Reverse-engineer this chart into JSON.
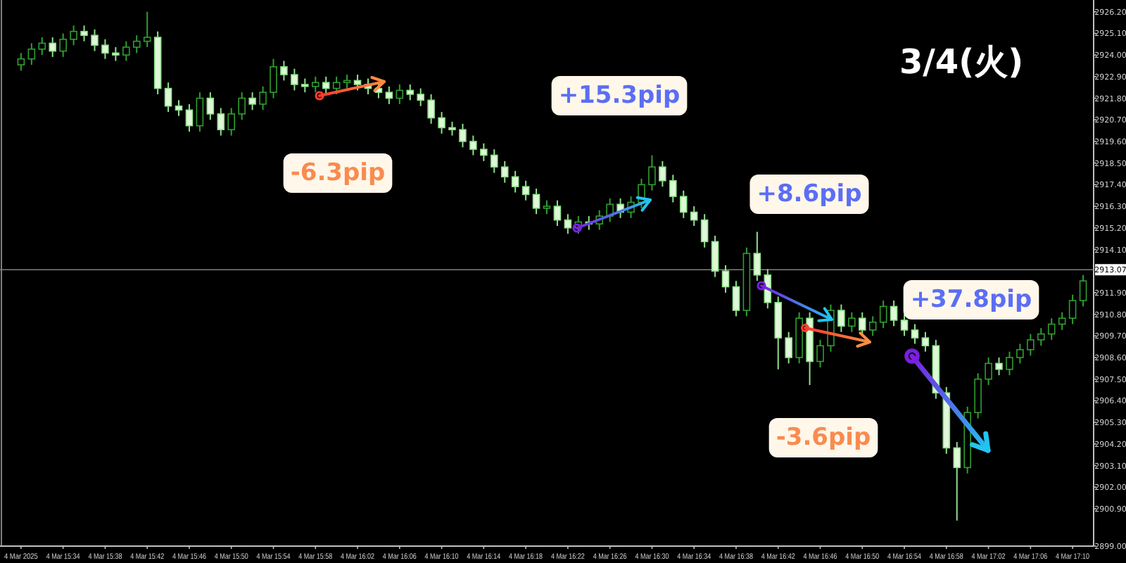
{
  "chart_data": {
    "type": "candlestick",
    "title": "3/4(火)",
    "annotations": [
      "-6.3pip",
      "+15.3pip",
      "+8.6pip",
      "+37.8pip",
      "-3.6pip"
    ],
    "x": [
      "2025-03-04T15:30",
      "2025-03-04T15:31",
      "2025-03-04T15:32",
      "2025-03-04T15:33",
      "2025-03-04T15:34",
      "2025-03-04T15:35",
      "2025-03-04T15:36",
      "2025-03-04T15:37",
      "2025-03-04T15:38",
      "2025-03-04T15:39",
      "2025-03-04T15:40",
      "2025-03-04T15:41",
      "2025-03-04T15:42",
      "2025-03-04T15:43",
      "2025-03-04T15:44",
      "2025-03-04T15:45",
      "2025-03-04T15:46",
      "2025-03-04T15:47",
      "2025-03-04T15:48",
      "2025-03-04T15:49",
      "2025-03-04T15:50",
      "2025-03-04T15:51",
      "2025-03-04T15:52",
      "2025-03-04T15:53",
      "2025-03-04T15:54",
      "2025-03-04T15:55",
      "2025-03-04T15:56",
      "2025-03-04T15:57",
      "2025-03-04T15:58",
      "2025-03-04T15:59",
      "2025-03-04T16:00",
      "2025-03-04T16:01",
      "2025-03-04T16:02",
      "2025-03-04T16:03",
      "2025-03-04T16:04",
      "2025-03-04T16:05",
      "2025-03-04T16:06",
      "2025-03-04T16:07",
      "2025-03-04T16:08",
      "2025-03-04T16:09",
      "2025-03-04T16:10",
      "2025-03-04T16:11",
      "2025-03-04T16:12",
      "2025-03-04T16:13",
      "2025-03-04T16:14",
      "2025-03-04T16:15",
      "2025-03-04T16:16",
      "2025-03-04T16:17",
      "2025-03-04T16:18",
      "2025-03-04T16:19",
      "2025-03-04T16:20",
      "2025-03-04T16:21",
      "2025-03-04T16:22",
      "2025-03-04T16:23",
      "2025-03-04T16:24",
      "2025-03-04T16:25",
      "2025-03-04T16:26",
      "2025-03-04T16:27",
      "2025-03-04T16:28",
      "2025-03-04T16:29",
      "2025-03-04T16:30",
      "2025-03-04T16:31",
      "2025-03-04T16:32",
      "2025-03-04T16:33",
      "2025-03-04T16:34",
      "2025-03-04T16:35",
      "2025-03-04T16:36",
      "2025-03-04T16:37",
      "2025-03-04T16:38",
      "2025-03-04T16:39",
      "2025-03-04T16:40",
      "2025-03-04T16:41",
      "2025-03-04T16:42",
      "2025-03-04T16:43",
      "2025-03-04T16:44",
      "2025-03-04T16:45",
      "2025-03-04T16:46",
      "2025-03-04T16:47",
      "2025-03-04T16:48",
      "2025-03-04T16:49",
      "2025-03-04T16:50",
      "2025-03-04T16:51",
      "2025-03-04T16:52",
      "2025-03-04T16:53",
      "2025-03-04T16:54",
      "2025-03-04T16:55",
      "2025-03-04T16:56",
      "2025-03-04T16:57",
      "2025-03-04T16:58",
      "2025-03-04T16:59",
      "2025-03-04T17:00",
      "2025-03-04T17:01",
      "2025-03-04T17:02",
      "2025-03-04T17:03",
      "2025-03-04T17:04",
      "2025-03-04T17:05",
      "2025-03-04T17:06",
      "2025-03-04T17:07",
      "2025-03-04T17:08",
      "2025-03-04T17:09",
      "2025-03-04T17:10",
      "2025-03-04T17:11"
    ],
    "ohlc": [
      [
        2923.5,
        2924.1,
        2923.2,
        2923.8
      ],
      [
        2923.8,
        2924.6,
        2923.5,
        2924.3
      ],
      [
        2924.3,
        2924.9,
        2924.0,
        2924.6
      ],
      [
        2924.6,
        2924.9,
        2923.9,
        2924.2
      ],
      [
        2924.2,
        2925.1,
        2923.9,
        2924.8
      ],
      [
        2924.8,
        2925.5,
        2924.5,
        2925.2
      ],
      [
        2925.2,
        2925.5,
        2924.7,
        2925.0
      ],
      [
        2925.0,
        2925.3,
        2924.2,
        2924.5
      ],
      [
        2924.5,
        2924.8,
        2923.8,
        2924.1
      ],
      [
        2924.1,
        2924.4,
        2923.7,
        2924.0
      ],
      [
        2924.0,
        2924.7,
        2923.7,
        2924.4
      ],
      [
        2924.4,
        2925.0,
        2924.1,
        2924.7
      ],
      [
        2924.7,
        2926.2,
        2924.4,
        2924.9
      ],
      [
        2924.9,
        2925.2,
        2922.0,
        2922.3
      ],
      [
        2922.3,
        2922.6,
        2921.1,
        2921.4
      ],
      [
        2921.4,
        2921.7,
        2920.9,
        2921.2
      ],
      [
        2921.2,
        2921.5,
        2920.1,
        2920.4
      ],
      [
        2920.4,
        2922.1,
        2920.1,
        2921.8
      ],
      [
        2921.8,
        2922.1,
        2920.7,
        2921.0
      ],
      [
        2921.0,
        2921.3,
        2919.9,
        2920.2
      ],
      [
        2920.2,
        2921.3,
        2919.9,
        2921.0
      ],
      [
        2921.0,
        2922.1,
        2920.7,
        2921.8
      ],
      [
        2921.8,
        2922.1,
        2921.2,
        2921.5
      ],
      [
        2921.5,
        2922.4,
        2921.2,
        2922.1
      ],
      [
        2922.1,
        2923.8,
        2921.8,
        2923.4
      ],
      [
        2923.4,
        2923.7,
        2922.7,
        2923.0
      ],
      [
        2923.0,
        2923.3,
        2922.2,
        2922.5
      ],
      [
        2922.5,
        2922.8,
        2922.1,
        2922.4
      ],
      [
        2922.4,
        2922.9,
        2922.1,
        2922.6
      ],
      [
        2922.6,
        2922.9,
        2922.0,
        2922.3
      ],
      [
        2922.3,
        2922.9,
        2922.0,
        2922.6
      ],
      [
        2922.6,
        2923.0,
        2922.3,
        2922.7
      ],
      [
        2922.7,
        2923.0,
        2922.2,
        2922.5
      ],
      [
        2922.5,
        2922.8,
        2922.0,
        2922.3
      ],
      [
        2922.3,
        2922.6,
        2921.8,
        2922.1
      ],
      [
        2922.1,
        2922.4,
        2921.5,
        2921.8
      ],
      [
        2921.8,
        2922.5,
        2921.5,
        2922.2
      ],
      [
        2922.2,
        2922.5,
        2921.7,
        2922.0
      ],
      [
        2922.0,
        2922.3,
        2921.4,
        2921.7
      ],
      [
        2921.7,
        2922.0,
        2920.5,
        2920.8
      ],
      [
        2920.8,
        2921.1,
        2920.0,
        2920.3
      ],
      [
        2920.3,
        2920.6,
        2919.9,
        2920.2
      ],
      [
        2920.2,
        2920.5,
        2919.3,
        2919.6
      ],
      [
        2919.6,
        2919.9,
        2918.9,
        2919.2
      ],
      [
        2919.2,
        2919.5,
        2918.6,
        2918.9
      ],
      [
        2918.9,
        2919.2,
        2918.0,
        2918.3
      ],
      [
        2918.3,
        2918.6,
        2917.5,
        2917.8
      ],
      [
        2917.8,
        2918.1,
        2917.0,
        2917.3
      ],
      [
        2917.3,
        2917.6,
        2916.6,
        2916.9
      ],
      [
        2916.9,
        2917.2,
        2915.9,
        2916.2
      ],
      [
        2916.2,
        2916.6,
        2915.9,
        2916.3
      ],
      [
        2916.3,
        2916.6,
        2915.3,
        2915.6
      ],
      [
        2915.6,
        2915.9,
        2914.9,
        2915.2
      ],
      [
        2915.2,
        2915.8,
        2914.9,
        2915.5
      ],
      [
        2915.5,
        2915.8,
        2915.1,
        2915.4
      ],
      [
        2915.4,
        2916.1,
        2915.1,
        2915.8
      ],
      [
        2915.8,
        2916.7,
        2915.5,
        2916.4
      ],
      [
        2916.4,
        2916.7,
        2915.7,
        2916.0
      ],
      [
        2916.0,
        2916.8,
        2915.7,
        2916.5
      ],
      [
        2916.5,
        2917.7,
        2916.2,
        2917.4
      ],
      [
        2917.4,
        2918.9,
        2917.1,
        2918.3
      ],
      [
        2918.3,
        2918.6,
        2917.3,
        2917.6
      ],
      [
        2917.6,
        2917.9,
        2916.5,
        2916.8
      ],
      [
        2916.8,
        2917.1,
        2915.7,
        2916.0
      ],
      [
        2916.0,
        2916.3,
        2915.3,
        2915.6
      ],
      [
        2915.6,
        2915.9,
        2914.2,
        2914.5
      ],
      [
        2914.5,
        2914.8,
        2912.7,
        2913.0
      ],
      [
        2913.0,
        2913.3,
        2911.9,
        2912.2
      ],
      [
        2912.2,
        2912.5,
        2910.7,
        2911.0
      ],
      [
        2911.0,
        2914.2,
        2910.7,
        2913.9
      ],
      [
        2913.9,
        2915.0,
        2912.5,
        2912.8
      ],
      [
        2912.8,
        2913.1,
        2911.1,
        2911.4
      ],
      [
        2911.4,
        2911.7,
        2908.0,
        2909.6
      ],
      [
        2909.6,
        2909.9,
        2908.3,
        2908.6
      ],
      [
        2908.6,
        2910.9,
        2908.3,
        2910.6
      ],
      [
        2910.6,
        2910.9,
        2907.2,
        2908.4
      ],
      [
        2908.4,
        2909.5,
        2908.1,
        2909.2
      ],
      [
        2909.2,
        2911.3,
        2908.9,
        2911.0
      ],
      [
        2911.0,
        2911.3,
        2909.9,
        2910.2
      ],
      [
        2910.2,
        2910.9,
        2909.9,
        2910.6
      ],
      [
        2910.6,
        2910.9,
        2909.7,
        2910.0
      ],
      [
        2910.0,
        2910.7,
        2909.7,
        2910.4
      ],
      [
        2910.4,
        2911.5,
        2910.1,
        2911.2
      ],
      [
        2911.2,
        2911.5,
        2910.2,
        2910.5
      ],
      [
        2910.5,
        2910.8,
        2909.7,
        2910.0
      ],
      [
        2910.0,
        2910.3,
        2909.3,
        2909.6
      ],
      [
        2909.6,
        2909.9,
        2908.9,
        2909.2
      ],
      [
        2909.2,
        2909.5,
        2906.5,
        2906.8
      ],
      [
        2906.8,
        2907.1,
        2903.7,
        2904.0
      ],
      [
        2904.0,
        2904.3,
        2900.3,
        2903.0
      ],
      [
        2903.0,
        2906.1,
        2902.7,
        2905.8
      ],
      [
        2905.8,
        2907.8,
        2905.5,
        2907.5
      ],
      [
        2907.5,
        2908.6,
        2907.2,
        2908.3
      ],
      [
        2908.3,
        2908.6,
        2907.7,
        2908.0
      ],
      [
        2908.0,
        2908.9,
        2907.7,
        2908.6
      ],
      [
        2908.6,
        2909.3,
        2908.3,
        2909.0
      ],
      [
        2909.0,
        2909.8,
        2908.7,
        2909.5
      ],
      [
        2909.5,
        2910.1,
        2909.2,
        2909.8
      ],
      [
        2909.8,
        2910.6,
        2909.5,
        2910.3
      ],
      [
        2910.3,
        2910.9,
        2910.0,
        2910.6
      ],
      [
        2910.6,
        2911.8,
        2910.3,
        2911.5
      ],
      [
        2911.5,
        2912.8,
        2911.2,
        2912.5
      ]
    ],
    "xlim": [
      "2025-03-04T15:28",
      "2025-03-04T17:12"
    ],
    "xticks": [
      {
        "value": "2025-03-04T15:30",
        "label": "4 Mar 2025"
      },
      {
        "value": "2025-03-04T15:34",
        "label": "4 Mar 15:34"
      },
      {
        "value": "2025-03-04T15:38",
        "label": "4 Mar 15:38"
      },
      {
        "value": "2025-03-04T15:42",
        "label": "4 Mar 15:42"
      },
      {
        "value": "2025-03-04T15:46",
        "label": "4 Mar 15:46"
      },
      {
        "value": "2025-03-04T15:50",
        "label": "4 Mar 15:50"
      },
      {
        "value": "2025-03-04T15:54",
        "label": "4 Mar 15:54"
      },
      {
        "value": "2025-03-04T15:58",
        "label": "4 Mar 15:58"
      },
      {
        "value": "2025-03-04T16:02",
        "label": "4 Mar 16:02"
      },
      {
        "value": "2025-03-04T16:06",
        "label": "4 Mar 16:06"
      },
      {
        "value": "2025-03-04T16:10",
        "label": "4 Mar 16:10"
      },
      {
        "value": "2025-03-04T16:14",
        "label": "4 Mar 16:14"
      },
      {
        "value": "2025-03-04T16:18",
        "label": "4 Mar 16:18"
      },
      {
        "value": "2025-03-04T16:22",
        "label": "4 Mar 16:22"
      },
      {
        "value": "2025-03-04T16:26",
        "label": "4 Mar 16:26"
      },
      {
        "value": "2025-03-04T16:30",
        "label": "4 Mar 16:30"
      },
      {
        "value": "2025-03-04T16:34",
        "label": "4 Mar 16:34"
      },
      {
        "value": "2025-03-04T16:38",
        "label": "4 Mar 16:38"
      },
      {
        "value": "2025-03-04T16:42",
        "label": "4 Mar 16:42"
      },
      {
        "value": "2025-03-04T16:46",
        "label": "4 Mar 16:46"
      },
      {
        "value": "2025-03-04T16:50",
        "label": "4 Mar 16:50"
      },
      {
        "value": "2025-03-04T16:54",
        "label": "4 Mar 16:54"
      },
      {
        "value": "2025-03-04T16:58",
        "label": "4 Mar 16:58"
      },
      {
        "value": "2025-03-04T17:02",
        "label": "4 Mar 17:02"
      },
      {
        "value": "2025-03-04T17:06",
        "label": "4 Mar 17:06"
      },
      {
        "value": "2025-03-04T17:10",
        "label": "4 Mar 17:10"
      }
    ],
    "ylim": [
      2899.0,
      2926.8
    ],
    "yticks": [
      {
        "value": 2926.2,
        "label": "2926.20"
      },
      {
        "value": 2925.1,
        "label": "2925.10"
      },
      {
        "value": 2924.0,
        "label": "2924.00"
      },
      {
        "value": 2922.9,
        "label": "2922.90"
      },
      {
        "value": 2921.8,
        "label": "2921.80"
      },
      {
        "value": 2920.7,
        "label": "2920.70"
      },
      {
        "value": 2919.6,
        "label": "2919.60"
      },
      {
        "value": 2918.5,
        "label": "2918.50"
      },
      {
        "value": 2917.4,
        "label": "2917.40"
      },
      {
        "value": 2916.3,
        "label": "2916.30"
      },
      {
        "value": 2915.2,
        "label": "2915.20"
      },
      {
        "value": 2914.1,
        "label": "2914.10"
      },
      {
        "value": 2911.9,
        "label": "2911.90"
      },
      {
        "value": 2910.8,
        "label": "2910.80"
      },
      {
        "value": 2909.7,
        "label": "2909.70"
      },
      {
        "value": 2908.6,
        "label": "2908.60"
      },
      {
        "value": 2907.5,
        "label": "2907.50"
      },
      {
        "value": 2906.4,
        "label": "2906.40"
      },
      {
        "value": 2905.3,
        "label": "2905.30"
      },
      {
        "value": 2904.2,
        "label": "2904.20"
      },
      {
        "value": 2903.1,
        "label": "2903.10"
      },
      {
        "value": 2902.0,
        "label": "2902.00"
      },
      {
        "value": 2900.9,
        "label": "2900.90"
      },
      {
        "value": 2899.0,
        "label": "2899.00"
      }
    ],
    "ref_lines": [
      {
        "axis": "y",
        "value": 2913.07,
        "label": "2913.07",
        "color": "#808080"
      }
    ]
  }
}
